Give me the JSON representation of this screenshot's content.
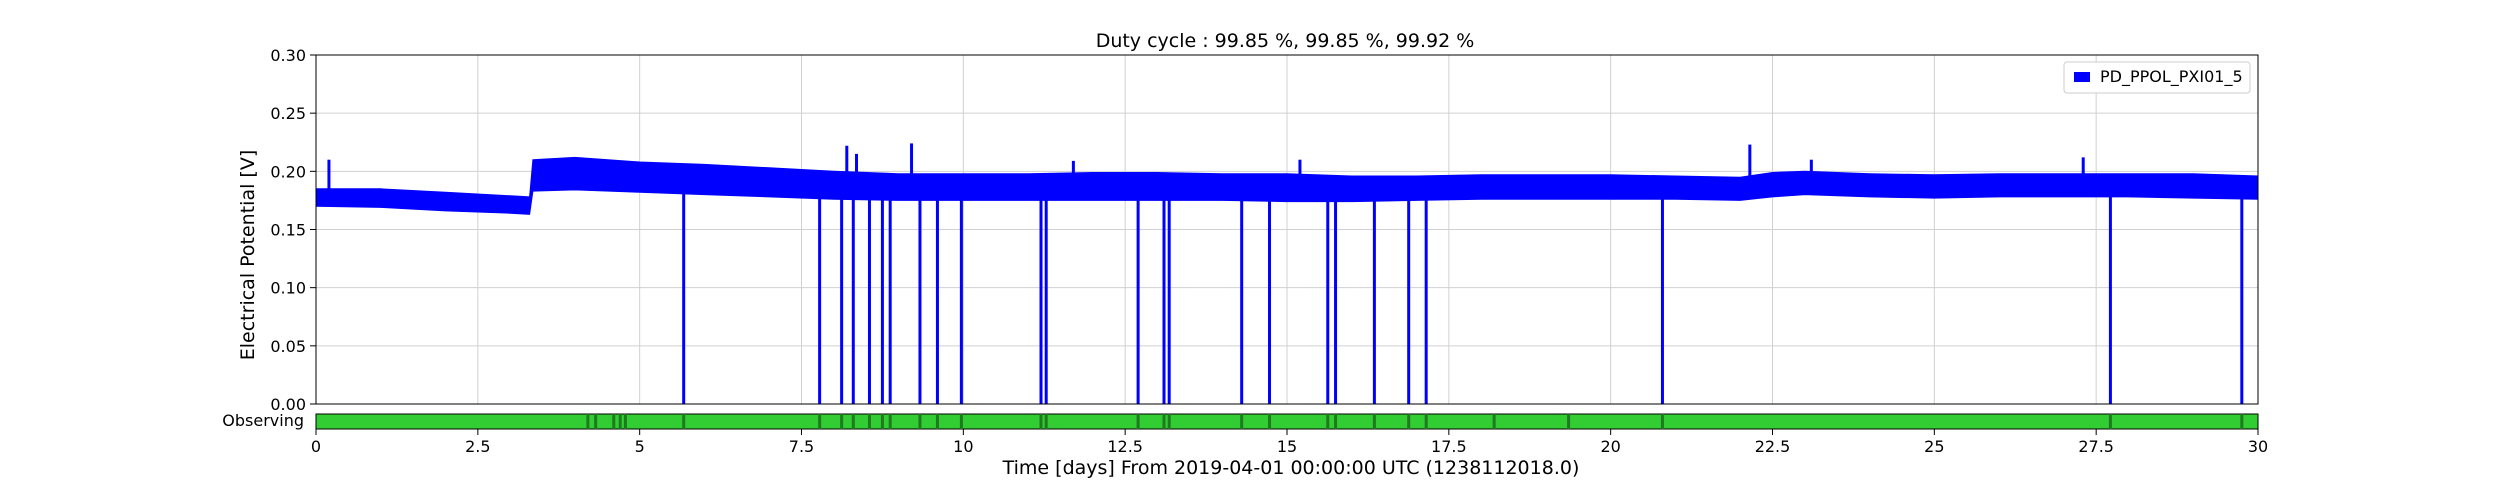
{
  "chart_data": {
    "type": "line",
    "title": "Duty cycle : 99.85 %, 99.85 %, 99.92 %",
    "xlabel": "Time [days] From 2019-04-01 00:00:00 UTC (1238112018.0)",
    "ylabel": "Electrical Potential [V]",
    "xlim": [
      0,
      30
    ],
    "ylim": [
      0,
      0.3
    ],
    "x_ticks": [
      "0",
      "2.5",
      "5",
      "7.5",
      "10",
      "12.5",
      "15",
      "17.5",
      "20",
      "22.5",
      "25",
      "27.5",
      "30"
    ],
    "y_ticks": [
      "0.00",
      "0.05",
      "0.10",
      "0.15",
      "0.20",
      "0.25",
      "0.30"
    ],
    "grid": true,
    "legend_position": "top-right",
    "series": [
      {
        "name": "PD_PPOL_PXI01_5",
        "color": "#0000ff",
        "band": {
          "x": [
            0,
            1,
            2,
            3,
            3.3,
            3.35,
            4,
            5,
            6,
            7,
            8,
            9,
            10,
            11,
            12,
            13,
            14,
            15,
            16,
            17,
            18,
            19,
            20,
            21,
            22,
            22.5,
            23,
            24,
            25,
            26,
            27,
            28,
            29,
            30
          ],
          "upper": [
            0.185,
            0.185,
            0.182,
            0.179,
            0.178,
            0.21,
            0.212,
            0.208,
            0.206,
            0.203,
            0.2,
            0.198,
            0.198,
            0.198,
            0.199,
            0.199,
            0.198,
            0.198,
            0.196,
            0.196,
            0.197,
            0.197,
            0.197,
            0.196,
            0.195,
            0.199,
            0.2,
            0.198,
            0.197,
            0.198,
            0.198,
            0.198,
            0.198,
            0.196
          ],
          "lower": [
            0.17,
            0.169,
            0.166,
            0.164,
            0.163,
            0.183,
            0.184,
            0.182,
            0.18,
            0.178,
            0.176,
            0.175,
            0.175,
            0.175,
            0.175,
            0.175,
            0.175,
            0.174,
            0.174,
            0.175,
            0.176,
            0.176,
            0.176,
            0.176,
            0.175,
            0.178,
            0.18,
            0.178,
            0.177,
            0.178,
            0.178,
            0.178,
            0.177,
            0.176
          ]
        },
        "dropouts_x": [
          5.68,
          7.78,
          8.12,
          8.3,
          8.55,
          8.75,
          8.87,
          9.33,
          9.6,
          9.97,
          11.2,
          11.28,
          12.7,
          13.1,
          13.18,
          14.3,
          14.73,
          15.63,
          15.75,
          16.35,
          16.88,
          17.15,
          20.8,
          27.72,
          29.75
        ],
        "spikes": [
          [
            0.2,
            0.21
          ],
          [
            8.2,
            0.222
          ],
          [
            8.35,
            0.215
          ],
          [
            9.2,
            0.224
          ],
          [
            11.7,
            0.209
          ],
          [
            15.2,
            0.21
          ],
          [
            22.15,
            0.223
          ],
          [
            23.1,
            0.21
          ],
          [
            27.3,
            0.212
          ]
        ]
      }
    ]
  },
  "state_bar": {
    "label": "Observing",
    "color": "#32cd32",
    "gap_color": "#1f7a1f",
    "gaps_x": [
      4.2,
      4.32,
      4.6,
      4.7,
      4.78,
      5.68,
      7.78,
      8.12,
      8.3,
      8.55,
      8.75,
      8.87,
      9.33,
      9.6,
      9.97,
      11.2,
      11.28,
      12.7,
      13.1,
      13.18,
      14.3,
      14.73,
      15.63,
      15.75,
      16.35,
      16.88,
      17.15,
      18.2,
      19.35,
      20.8,
      27.72,
      29.75
    ]
  }
}
